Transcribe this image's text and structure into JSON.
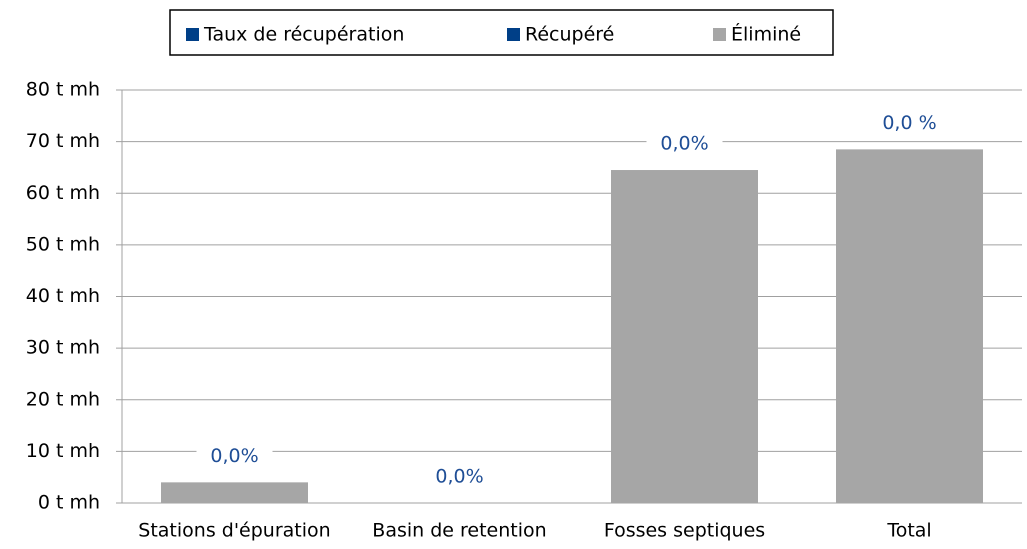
{
  "chart_data": {
    "type": "bar",
    "stacked": true,
    "categories": [
      "Stations d'épuration",
      "Basin de retention",
      "Fosses septiques",
      "Total"
    ],
    "series": [
      {
        "name": "Taux de récupération",
        "color": "#003f87",
        "values": [
          0,
          0,
          0,
          0
        ],
        "value_labels": [
          "0,0%",
          "0,0%",
          "0,0%",
          "0,0 %"
        ]
      },
      {
        "name": "Récupéré",
        "color": "#003f87",
        "values": [
          0,
          0,
          0,
          0
        ]
      },
      {
        "name": "Éliminé",
        "color": "#a6a6a6",
        "values": [
          4,
          0,
          64.5,
          68.5
        ]
      }
    ],
    "ylim": [
      0,
      80
    ],
    "yticks": [
      {
        "value": 0,
        "label": "0 t mh"
      },
      {
        "value": 10,
        "label": "10 t mh"
      },
      {
        "value": 20,
        "label": "20 t mh"
      },
      {
        "value": 30,
        "label": "30 t mh"
      },
      {
        "value": 40,
        "label": "40 t mh"
      },
      {
        "value": 50,
        "label": "50 t mh"
      },
      {
        "value": 60,
        "label": "60 t mh"
      },
      {
        "value": 70,
        "label": "70 t mh"
      },
      {
        "value": 80,
        "label": "80 t mh"
      }
    ],
    "grid": true,
    "legend": "top"
  }
}
